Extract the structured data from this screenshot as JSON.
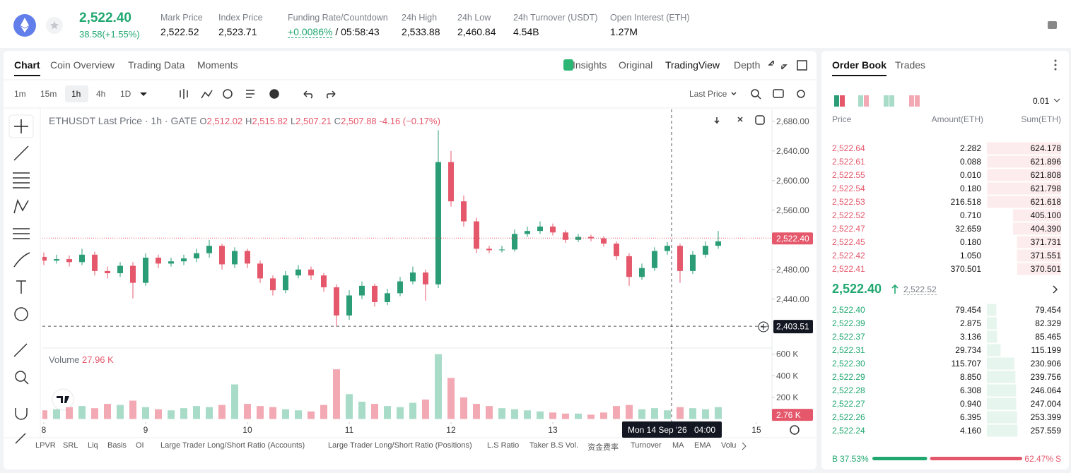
{
  "header": {
    "price": "2,522.40",
    "change": "38.58(+1.55%)",
    "stats": [
      {
        "label": "Mark Price",
        "value": "2,522.52"
      },
      {
        "label": "Index Price",
        "value": "2,523.71"
      },
      {
        "label": "Funding Rate/Countdown",
        "value": "+0.0086%",
        "countdown": "/ 05:58:43"
      },
      {
        "label": "24h High",
        "value": "2,533.88"
      },
      {
        "label": "24h Low",
        "value": "2,460.84"
      },
      {
        "label": "24h Turnover (USDT)",
        "value": "4.54B"
      },
      {
        "label": "Open Interest (ETH)",
        "value": "1.27M"
      }
    ]
  },
  "chart_tabs": [
    "Chart",
    "Coin Overview",
    "Trading Data",
    "Moments"
  ],
  "view_tabs": [
    "Insights",
    "Original",
    "TradingView",
    "Depth"
  ],
  "intervals": [
    "1m",
    "15m",
    "1h",
    "4h",
    "1D"
  ],
  "price_source": "Last Price",
  "indicators": [
    "LPVR",
    "SRL",
    "Liq",
    "Basis",
    "OI",
    "Large Trader Long/Short Ratio (Accounts)",
    "Large Trader Long/Short Ratio (Positions)",
    "L.S Ratio",
    "Taker B.S Vol.",
    "资金费率",
    "Turnover",
    "MA",
    "EMA",
    "Volu"
  ],
  "order_book": {
    "tabs": [
      "Order Book",
      "Trades"
    ],
    "precision": "0.01",
    "columns": [
      "Price",
      "Amount(ETH)",
      "Sum(ETH)"
    ],
    "asks": [
      [
        "2,522.64",
        "2.282",
        "624.178"
      ],
      [
        "2,522.61",
        "0.088",
        "621.896"
      ],
      [
        "2,522.55",
        "0.010",
        "621.808"
      ],
      [
        "2,522.54",
        "0.180",
        "621.798"
      ],
      [
        "2,522.53",
        "216.518",
        "621.618"
      ],
      [
        "2,522.52",
        "0.710",
        "405.100"
      ],
      [
        "2,522.47",
        "32.659",
        "404.390"
      ],
      [
        "2,522.45",
        "0.180",
        "371.731"
      ],
      [
        "2,522.42",
        "1.050",
        "371.551"
      ],
      [
        "2,522.41",
        "370.501",
        "370.501"
      ]
    ],
    "mid_price": "2,522.40",
    "mark_price": "2,522.52",
    "bids": [
      [
        "2,522.40",
        "79.454",
        "79.454"
      ],
      [
        "2,522.39",
        "2.875",
        "82.329"
      ],
      [
        "2,522.37",
        "3.136",
        "85.465"
      ],
      [
        "2,522.31",
        "29.734",
        "115.199"
      ],
      [
        "2,522.30",
        "115.707",
        "230.906"
      ],
      [
        "2,522.29",
        "8.850",
        "239.756"
      ],
      [
        "2,522.28",
        "6.308",
        "246.064"
      ],
      [
        "2,522.27",
        "0.940",
        "247.004"
      ],
      [
        "2,522.26",
        "6.395",
        "253.399"
      ],
      [
        "2,522.24",
        "4.160",
        "257.559"
      ]
    ],
    "buy_label": "B",
    "buy_ratio": "37.53%",
    "sell_ratio": "62.47%",
    "sell_label": "S"
  },
  "chart_data": {
    "type": "candlestick",
    "title": "ETHUSDT Last Price · 1h · GATE",
    "ohlc_legend": [
      {
        "label": "O",
        "value": "2,512.02"
      },
      {
        "label": "H",
        "value": "2,515.82"
      },
      {
        "label": "L",
        "value": "2,507.21"
      },
      {
        "label": "C",
        "value": "2,507.88"
      }
    ],
    "change": "-4.16 (−0.17%)",
    "x": [
      8,
      8.125,
      8.25,
      8.375,
      8.5,
      8.625,
      8.75,
      8.875,
      9,
      9.125,
      9.25,
      9.375,
      9.5,
      9.625,
      9.75,
      9.875,
      10,
      10.125,
      10.25,
      10.375,
      10.5,
      10.625,
      10.75,
      10.875,
      11,
      11.125,
      11.25,
      11.375,
      11.5,
      11.625,
      11.75,
      11.875,
      12,
      12.125,
      12.25,
      12.375,
      12.5,
      12.625,
      12.75,
      12.875,
      13,
      13.125,
      13.25,
      13.375,
      13.5,
      13.625,
      13.75,
      13.875,
      14,
      14.125,
      14.25,
      14.375,
      14.5,
      14.625
    ],
    "open": [
      2497,
      2492,
      2494,
      2490,
      2500,
      2478,
      2475,
      2485,
      2462,
      2496,
      2488,
      2491,
      2495,
      2502,
      2512,
      2487,
      2505,
      2488,
      2468,
      2452,
      2472,
      2480,
      2472,
      2456,
      2418,
      2445,
      2458,
      2436,
      2448,
      2464,
      2476,
      2460,
      2625,
      2572,
      2545,
      2508,
      2506,
      2507,
      2528,
      2532,
      2538,
      2530,
      2520,
      2524,
      2522,
      2515,
      2498,
      2470,
      2482,
      2505,
      2512,
      2478,
      2500,
      2512
    ],
    "high": [
      2503,
      2500,
      2499,
      2508,
      2504,
      2484,
      2490,
      2490,
      2502,
      2500,
      2496,
      2500,
      2508,
      2520,
      2515,
      2510,
      2508,
      2492,
      2472,
      2478,
      2486,
      2484,
      2475,
      2460,
      2452,
      2464,
      2461,
      2454,
      2470,
      2484,
      2480,
      2668,
      2640,
      2580,
      2550,
      2512,
      2512,
      2534,
      2538,
      2545,
      2542,
      2533,
      2528,
      2527,
      2525,
      2518,
      2502,
      2488,
      2510,
      2517,
      2515,
      2505,
      2518,
      2532
    ],
    "low": [
      2486,
      2488,
      2484,
      2486,
      2472,
      2468,
      2470,
      2441,
      2458,
      2482,
      2484,
      2486,
      2490,
      2496,
      2480,
      2482,
      2482,
      2462,
      2445,
      2448,
      2468,
      2466,
      2450,
      2403,
      2412,
      2440,
      2430,
      2432,
      2444,
      2460,
      2438,
      2455,
      2565,
      2538,
      2502,
      2502,
      2503,
      2504,
      2524,
      2528,
      2526,
      2516,
      2517,
      2518,
      2511,
      2493,
      2458,
      2466,
      2478,
      2500,
      2462,
      2474,
      2496,
      2508
    ],
    "close": [
      2492,
      2494,
      2490,
      2500,
      2478,
      2475,
      2485,
      2462,
      2496,
      2488,
      2491,
      2495,
      2502,
      2512,
      2487,
      2505,
      2488,
      2468,
      2452,
      2472,
      2480,
      2472,
      2456,
      2418,
      2445,
      2458,
      2436,
      2448,
      2464,
      2476,
      2460,
      2625,
      2572,
      2545,
      2508,
      2506,
      2507,
      2528,
      2532,
      2538,
      2530,
      2520,
      2524,
      2522,
      2515,
      2498,
      2470,
      2482,
      2505,
      2512,
      2478,
      2500,
      2512,
      2518
    ],
    "volume": [
      80000,
      90000,
      110000,
      120000,
      100000,
      140000,
      130000,
      170000,
      110000,
      90000,
      80000,
      100000,
      120000,
      110000,
      130000,
      320000,
      140000,
      120000,
      110000,
      90000,
      80000,
      70000,
      130000,
      460000,
      230000,
      160000,
      140000,
      120000,
      110000,
      150000,
      180000,
      600000,
      380000,
      200000,
      140000,
      120000,
      100000,
      90000,
      80000,
      70000,
      60000,
      50000,
      50000,
      40000,
      60000,
      120000,
      130000,
      90000,
      100000,
      80000,
      110000,
      100000,
      90000,
      110000
    ],
    "xlim": [
      8,
      15.153
    ],
    "xticks": [
      8,
      9,
      10,
      11,
      12,
      13,
      15
    ],
    "ylim": [
      2375,
      2696
    ],
    "yticks": [
      {
        "value": 2440,
        "label": "2,440.00"
      },
      {
        "value": 2480,
        "label": "2,480.00"
      },
      {
        "value": 2520,
        "label": "2,520.00"
      },
      {
        "value": 2560,
        "label": "2,560.00"
      },
      {
        "value": 2600,
        "label": "2,600.00"
      },
      {
        "value": 2640,
        "label": "2,640.00"
      },
      {
        "value": 2680,
        "label": "2,680.00"
      }
    ],
    "volume_title": "Volume",
    "volume_value": "27.96 K",
    "volume_ylim": [
      0,
      650000
    ],
    "volume_yticks": [
      {
        "value": 200000,
        "label": "200 K"
      },
      {
        "value": 400000,
        "label": "400 K"
      },
      {
        "value": 600000,
        "label": "600 K"
      }
    ],
    "volume_last": {
      "value": 2760,
      "label": "2.76 K"
    },
    "last_price": {
      "value": 2522.4,
      "label": "2,522.40"
    },
    "crosshair_price": {
      "value": 2403.51,
      "label": "2,403.51"
    },
    "crosshair_time": {
      "value": 14.1667,
      "date": "Mon 14 Sep '26",
      "label": "04:00"
    },
    "up_color": "#2a9d76",
    "down_color": "#e5586c",
    "up_volume_color": "#a8dcc8",
    "down_volume_color": "#f3a9b3",
    "grid": false
  }
}
